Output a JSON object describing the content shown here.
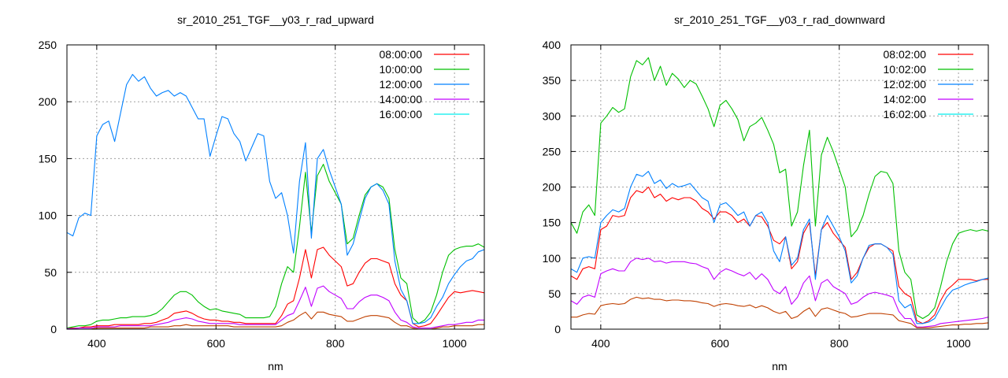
{
  "chart_data": [
    {
      "type": "line",
      "title": "sr_2010_251_TGF__y03_r_rad_upward",
      "xlabel": "nm",
      "ylabel": "",
      "xlim": [
        350,
        1050
      ],
      "ylim": [
        0,
        250
      ],
      "xticks": [
        400,
        600,
        800,
        1000
      ],
      "yticks": [
        0,
        50,
        100,
        150,
        200,
        250
      ],
      "grid": true,
      "legend_position": "top-right",
      "x": [
        350,
        360,
        370,
        380,
        390,
        400,
        410,
        420,
        430,
        440,
        450,
        460,
        470,
        480,
        490,
        500,
        510,
        520,
        530,
        540,
        550,
        560,
        570,
        580,
        590,
        600,
        610,
        620,
        630,
        640,
        650,
        660,
        670,
        680,
        690,
        700,
        710,
        720,
        730,
        740,
        750,
        760,
        770,
        780,
        790,
        800,
        810,
        820,
        830,
        840,
        850,
        860,
        870,
        880,
        890,
        900,
        910,
        920,
        930,
        940,
        950,
        960,
        970,
        980,
        990,
        1000,
        1010,
        1020,
        1030,
        1040,
        1050
      ],
      "series": [
        {
          "name": "08:00:00",
          "legend_color": "#ff0000",
          "line_color": "#ff0000",
          "values": [
            1,
            1,
            1,
            2,
            2,
            3,
            3,
            3,
            4,
            4,
            4,
            4,
            4,
            5,
            5,
            6,
            8,
            10,
            14,
            15,
            16,
            14,
            11,
            9,
            8,
            8,
            7,
            7,
            6,
            6,
            5,
            5,
            5,
            5,
            5,
            5,
            12,
            22,
            25,
            45,
            70,
            45,
            70,
            72,
            65,
            60,
            55,
            38,
            40,
            50,
            58,
            62,
            62,
            60,
            58,
            40,
            30,
            25,
            5,
            2,
            3,
            5,
            12,
            20,
            28,
            33,
            32,
            33,
            34,
            33,
            32
          ]
        },
        {
          "name": "10:00:00",
          "legend_color": "#00c000",
          "line_color": "#00c000",
          "values": [
            1,
            2,
            3,
            3,
            4,
            7,
            8,
            8,
            9,
            10,
            10,
            11,
            11,
            11,
            12,
            14,
            18,
            24,
            30,
            33,
            33,
            30,
            24,
            20,
            17,
            18,
            16,
            15,
            14,
            13,
            10,
            10,
            10,
            10,
            11,
            20,
            40,
            55,
            50,
            90,
            138,
            85,
            135,
            145,
            130,
            120,
            110,
            75,
            80,
            100,
            118,
            125,
            128,
            125,
            115,
            70,
            45,
            40,
            10,
            5,
            8,
            15,
            30,
            50,
            65,
            70,
            72,
            73,
            73,
            75,
            72
          ]
        },
        {
          "name": "12:00:00",
          "legend_color": "#0080ff",
          "line_color": "#0080ff",
          "values": [
            85,
            82,
            98,
            102,
            100,
            170,
            180,
            183,
            165,
            190,
            215,
            224,
            218,
            222,
            212,
            205,
            208,
            210,
            205,
            208,
            205,
            195,
            185,
            185,
            152,
            170,
            187,
            185,
            172,
            165,
            148,
            160,
            172,
            170,
            130,
            115,
            120,
            100,
            67,
            130,
            164,
            80,
            150,
            158,
            140,
            125,
            110,
            65,
            75,
            95,
            115,
            125,
            128,
            122,
            110,
            60,
            35,
            25,
            5,
            5,
            6,
            10,
            20,
            28,
            40,
            48,
            55,
            60,
            62,
            68,
            70
          ]
        },
        {
          "name": "14:00:00",
          "legend_color": "#c000ff",
          "line_color": "#c000ff",
          "values": [
            0.5,
            0.5,
            1,
            1,
            1,
            2,
            2,
            2,
            2,
            3,
            3,
            3,
            3,
            3,
            3,
            4,
            5,
            6,
            8,
            9,
            10,
            9,
            7,
            6,
            5,
            5,
            5,
            5,
            5,
            4,
            4,
            4,
            4,
            4,
            4,
            4,
            8,
            12,
            14,
            25,
            37,
            20,
            36,
            38,
            33,
            30,
            27,
            18,
            18,
            24,
            28,
            30,
            30,
            28,
            25,
            15,
            8,
            6,
            2,
            1,
            1,
            1,
            2,
            3,
            4,
            4,
            5,
            6,
            6,
            8,
            8
          ]
        },
        {
          "name": "16:00:00",
          "legend_color": "#00eeee",
          "line_color": "#c04000",
          "values": [
            0,
            0,
            0,
            0,
            0,
            1,
            1,
            1,
            1,
            1,
            1,
            1,
            1,
            1,
            2,
            2,
            2,
            2,
            3,
            3,
            4,
            3,
            3,
            3,
            3,
            3,
            3,
            3,
            2,
            2,
            2,
            2,
            2,
            2,
            2,
            2,
            3,
            6,
            8,
            12,
            15,
            9,
            15,
            15,
            13,
            12,
            11,
            7,
            7,
            9,
            11,
            12,
            12,
            11,
            10,
            6,
            3,
            3,
            1,
            0,
            0,
            0,
            1,
            2,
            2,
            3,
            3,
            3,
            3,
            4,
            4
          ]
        }
      ]
    },
    {
      "type": "line",
      "title": "sr_2010_251_TGF__y03_r_rad_downward",
      "xlabel": "nm",
      "ylabel": "",
      "xlim": [
        350,
        1050
      ],
      "ylim": [
        0,
        400
      ],
      "xticks": [
        400,
        600,
        800,
        1000
      ],
      "yticks": [
        0,
        50,
        100,
        150,
        200,
        250,
        300,
        350,
        400
      ],
      "grid": true,
      "legend_position": "top-right",
      "x": [
        350,
        360,
        370,
        380,
        390,
        400,
        410,
        420,
        430,
        440,
        450,
        460,
        470,
        480,
        490,
        500,
        510,
        520,
        530,
        540,
        550,
        560,
        570,
        580,
        590,
        600,
        610,
        620,
        630,
        640,
        650,
        660,
        670,
        680,
        690,
        700,
        710,
        720,
        730,
        740,
        750,
        760,
        770,
        780,
        790,
        800,
        810,
        820,
        830,
        840,
        850,
        860,
        870,
        880,
        890,
        900,
        910,
        920,
        930,
        940,
        950,
        960,
        970,
        980,
        990,
        1000,
        1010,
        1020,
        1030,
        1040,
        1050
      ],
      "series": [
        {
          "name": "08:02:00",
          "legend_color": "#ff0000",
          "line_color": "#ff0000",
          "values": [
            75,
            70,
            85,
            88,
            85,
            140,
            145,
            160,
            158,
            160,
            185,
            195,
            192,
            200,
            185,
            190,
            180,
            185,
            182,
            185,
            185,
            180,
            170,
            165,
            155,
            165,
            165,
            160,
            150,
            155,
            145,
            160,
            158,
            145,
            125,
            120,
            130,
            85,
            95,
            135,
            150,
            75,
            140,
            150,
            135,
            125,
            115,
            70,
            80,
            100,
            115,
            120,
            120,
            115,
            110,
            60,
            50,
            45,
            12,
            8,
            12,
            20,
            40,
            55,
            62,
            70,
            70,
            70,
            68,
            70,
            70
          ]
        },
        {
          "name": "10:02:00",
          "legend_color": "#00c000",
          "line_color": "#00c000",
          "values": [
            150,
            135,
            165,
            175,
            160,
            290,
            300,
            312,
            305,
            310,
            355,
            378,
            372,
            382,
            350,
            370,
            343,
            360,
            352,
            340,
            350,
            345,
            328,
            310,
            285,
            315,
            322,
            310,
            295,
            265,
            285,
            290,
            298,
            280,
            260,
            220,
            225,
            145,
            165,
            230,
            280,
            145,
            245,
            270,
            250,
            225,
            200,
            130,
            140,
            160,
            190,
            215,
            222,
            220,
            205,
            110,
            80,
            70,
            20,
            15,
            20,
            30,
            60,
            95,
            120,
            135,
            138,
            140,
            138,
            140,
            138
          ]
        },
        {
          "name": "12:02:00",
          "legend_color": "#0080ff",
          "line_color": "#0080ff",
          "values": [
            85,
            80,
            100,
            102,
            100,
            150,
            160,
            168,
            165,
            170,
            200,
            218,
            215,
            222,
            205,
            210,
            198,
            205,
            200,
            202,
            205,
            195,
            185,
            180,
            150,
            175,
            178,
            170,
            160,
            165,
            145,
            160,
            165,
            150,
            110,
            95,
            130,
            90,
            100,
            140,
            155,
            70,
            140,
            160,
            145,
            130,
            110,
            65,
            75,
            100,
            118,
            120,
            120,
            115,
            105,
            40,
            30,
            35,
            8,
            8,
            10,
            15,
            30,
            45,
            55,
            58,
            62,
            65,
            67,
            70,
            72
          ]
        },
        {
          "name": "14:02:00",
          "legend_color": "#c000ff",
          "line_color": "#c000ff",
          "values": [
            40,
            35,
            45,
            48,
            45,
            78,
            82,
            85,
            82,
            82,
            95,
            100,
            98,
            100,
            95,
            96,
            93,
            95,
            95,
            95,
            93,
            92,
            88,
            85,
            70,
            80,
            85,
            82,
            78,
            75,
            80,
            70,
            78,
            70,
            55,
            50,
            60,
            35,
            45,
            65,
            75,
            40,
            65,
            70,
            60,
            55,
            50,
            35,
            38,
            45,
            50,
            52,
            50,
            48,
            45,
            25,
            15,
            15,
            3,
            3,
            4,
            5,
            8,
            9,
            10,
            11,
            12,
            13,
            14,
            15,
            17
          ]
        },
        {
          "name": "16:02:00",
          "legend_color": "#00eeee",
          "line_color": "#c04000",
          "values": [
            17,
            17,
            20,
            22,
            21,
            33,
            35,
            36,
            35,
            36,
            42,
            45,
            43,
            44,
            42,
            42,
            40,
            41,
            41,
            40,
            40,
            39,
            37,
            36,
            32,
            35,
            36,
            35,
            33,
            32,
            34,
            30,
            33,
            30,
            25,
            22,
            25,
            15,
            18,
            25,
            30,
            18,
            28,
            30,
            27,
            24,
            22,
            17,
            18,
            20,
            22,
            22,
            22,
            21,
            20,
            12,
            10,
            8,
            2,
            2,
            2,
            3,
            4,
            5,
            6,
            6,
            7,
            7,
            8,
            8,
            9
          ]
        }
      ]
    }
  ]
}
